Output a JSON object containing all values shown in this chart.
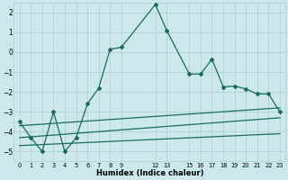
{
  "xlabel": "Humidex (Indice chaleur)",
  "background_color": "#cce8ec",
  "grid_color": "#aacdd3",
  "line_color": "#1a6b5a",
  "main_series_x": [
    0,
    1,
    2,
    3,
    4,
    5,
    6,
    7,
    8,
    9,
    12,
    13,
    15,
    16,
    17,
    18,
    19,
    20,
    21,
    22,
    23
  ],
  "main_series_y": [
    -3.5,
    -4.3,
    -5.0,
    -3.0,
    -5.0,
    -4.3,
    -2.6,
    -1.8,
    0.15,
    0.25,
    2.4,
    1.1,
    -1.1,
    -1.1,
    -0.35,
    -1.75,
    -1.7,
    -1.85,
    -2.1,
    -2.1,
    -3.0
  ],
  "line1_x": [
    0,
    23
  ],
  "line1_y": [
    -3.7,
    -2.8
  ],
  "line2_x": [
    0,
    23
  ],
  "line2_y": [
    -4.3,
    -3.3
  ],
  "line3_x": [
    0,
    23
  ],
  "line3_y": [
    -4.7,
    -4.1
  ],
  "xlim": [
    -0.5,
    23.5
  ],
  "ylim": [
    -5.5,
    2.5
  ],
  "yticks": [
    -5,
    -4,
    -3,
    -2,
    -1,
    0,
    1,
    2
  ],
  "xtick_positions": [
    0,
    1,
    2,
    3,
    4,
    5,
    6,
    7,
    8,
    9,
    12,
    13,
    15,
    16,
    17,
    18,
    19,
    20,
    21,
    22,
    23
  ],
  "xtick_labels": [
    "0",
    "1",
    "2",
    "3",
    "4",
    "5",
    "6",
    "7",
    "8",
    "9",
    "12",
    "13",
    "15",
    "16",
    "17",
    "18",
    "19",
    "20",
    "21",
    "22",
    "23"
  ]
}
